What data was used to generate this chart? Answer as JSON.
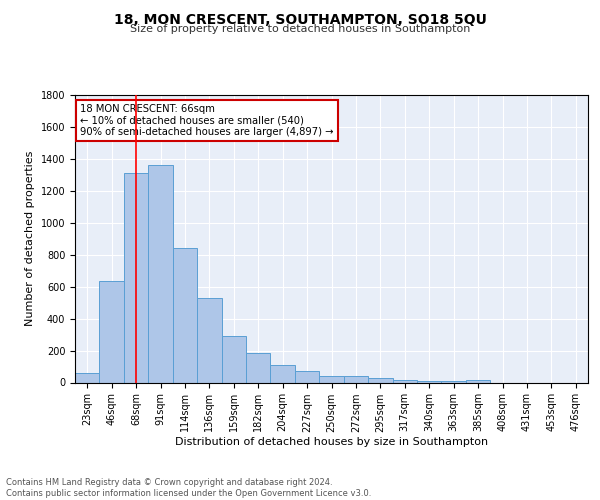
{
  "title1": "18, MON CRESCENT, SOUTHAMPTON, SO18 5QU",
  "title2": "Size of property relative to detached houses in Southampton",
  "xlabel": "Distribution of detached houses by size in Southampton",
  "ylabel": "Number of detached properties",
  "categories": [
    "23sqm",
    "46sqm",
    "68sqm",
    "91sqm",
    "114sqm",
    "136sqm",
    "159sqm",
    "182sqm",
    "204sqm",
    "227sqm",
    "250sqm",
    "272sqm",
    "295sqm",
    "317sqm",
    "340sqm",
    "363sqm",
    "385sqm",
    "408sqm",
    "431sqm",
    "453sqm",
    "476sqm"
  ],
  "values": [
    60,
    638,
    1310,
    1360,
    845,
    530,
    290,
    182,
    110,
    72,
    40,
    38,
    27,
    18,
    10,
    10,
    18,
    0,
    0,
    0,
    0
  ],
  "bar_color": "#aec6e8",
  "bar_edge_color": "#5a9fd4",
  "background_color": "#e8eef8",
  "grid_color": "#ffffff",
  "red_line_x": 2.0,
  "annotation_text": "18 MON CRESCENT: 66sqm\n← 10% of detached houses are smaller (540)\n90% of semi-detached houses are larger (4,897) →",
  "annotation_box_color": "#ffffff",
  "annotation_box_edge": "#cc0000",
  "ylim": [
    0,
    1800
  ],
  "yticks": [
    0,
    200,
    400,
    600,
    800,
    1000,
    1200,
    1400,
    1600,
    1800
  ],
  "footer": "Contains HM Land Registry data © Crown copyright and database right 2024.\nContains public sector information licensed under the Open Government Licence v3.0.",
  "title1_fontsize": 10,
  "title2_fontsize": 8,
  "ylabel_fontsize": 8,
  "xlabel_fontsize": 8,
  "tick_fontsize": 7,
  "footer_fontsize": 6
}
